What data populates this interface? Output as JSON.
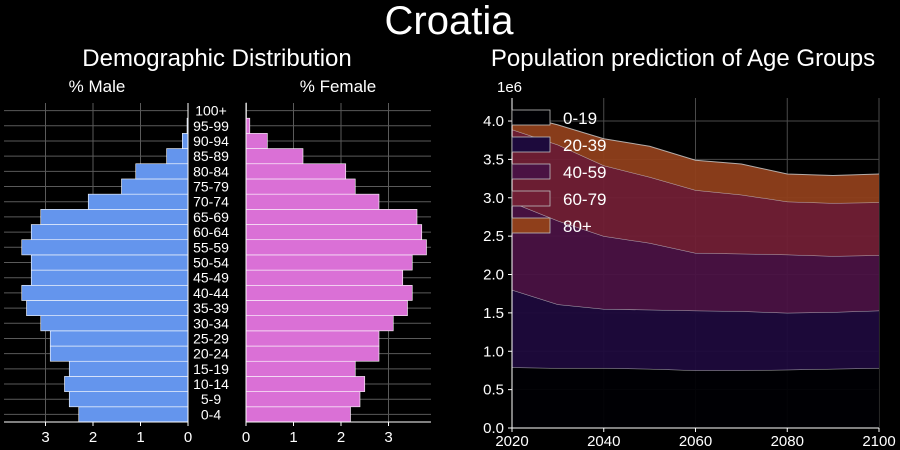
{
  "suptitle": "Croatia",
  "chart_data": [
    {
      "type": "bar",
      "orientation": "horizontal",
      "title": "Demographic Distribution",
      "side_titles": {
        "male": "% Male",
        "female": "% Female"
      },
      "categories": [
        "0-4",
        "5-9",
        "10-14",
        "15-19",
        "20-24",
        "25-29",
        "30-34",
        "35-39",
        "40-44",
        "45-49",
        "50-54",
        "55-59",
        "60-64",
        "65-69",
        "70-74",
        "75-79",
        "80-84",
        "85-89",
        "90-94",
        "95-99",
        "100+"
      ],
      "series": [
        {
          "name": "% Male",
          "color": "#6495ed",
          "values": [
            2.3,
            2.5,
            2.6,
            2.5,
            2.9,
            2.9,
            3.1,
            3.4,
            3.5,
            3.3,
            3.3,
            3.5,
            3.3,
            3.1,
            2.1,
            1.4,
            1.1,
            0.45,
            0.12,
            0.02,
            0.0
          ]
        },
        {
          "name": "% Female",
          "color": "#da70d6",
          "values": [
            2.2,
            2.4,
            2.5,
            2.3,
            2.8,
            2.8,
            3.1,
            3.4,
            3.5,
            3.3,
            3.5,
            3.8,
            3.7,
            3.6,
            2.8,
            2.3,
            2.1,
            1.2,
            0.45,
            0.08,
            0.01
          ]
        }
      ],
      "xticks_male": [
        "3",
        "2",
        "1",
        "0"
      ],
      "xticks_female": [
        "0",
        "1",
        "2",
        "3"
      ],
      "grid": true
    },
    {
      "type": "area",
      "stacked": true,
      "title": "Population prediction of Age Groups",
      "y_scale_label": "1e6",
      "x": [
        2020,
        2030,
        2040,
        2050,
        2060,
        2070,
        2080,
        2090,
        2100
      ],
      "xlim": [
        2020,
        2100
      ],
      "ylim": [
        0,
        4.3
      ],
      "xticks": [
        "2020",
        "2040",
        "2060",
        "2080",
        "2100"
      ],
      "yticks": [
        "0.0",
        "0.5",
        "1.0",
        "1.5",
        "2.0",
        "2.5",
        "3.0",
        "3.5",
        "4.0"
      ],
      "legend_position": "top-left",
      "grid": true,
      "series": [
        {
          "name": "0-19",
          "color": "#000004",
          "values": [
            0.79,
            0.78,
            0.78,
            0.77,
            0.75,
            0.75,
            0.76,
            0.77,
            0.78
          ]
        },
        {
          "name": "20-39",
          "color": "#1d0a3c",
          "values": [
            1.01,
            0.83,
            0.77,
            0.77,
            0.78,
            0.77,
            0.74,
            0.74,
            0.75
          ]
        },
        {
          "name": "40-59",
          "color": "#4a1243",
          "values": [
            1.14,
            1.09,
            0.95,
            0.87,
            0.75,
            0.75,
            0.76,
            0.73,
            0.72
          ]
        },
        {
          "name": "60-79",
          "color": "#711f35",
          "values": [
            0.95,
            0.99,
            0.92,
            0.86,
            0.82,
            0.77,
            0.69,
            0.69,
            0.69
          ]
        },
        {
          "name": "80+",
          "color": "#8f3f1b",
          "values": [
            0.21,
            0.26,
            0.35,
            0.4,
            0.39,
            0.4,
            0.36,
            0.36,
            0.37
          ]
        }
      ]
    }
  ]
}
